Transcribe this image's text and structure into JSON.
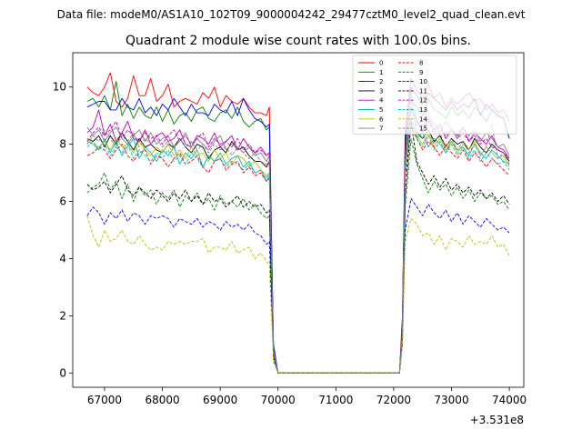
{
  "chart_data": {
    "type": "line",
    "suptitle": "Data file: modeM0/AS1A10_102T09_9000004242_29477cztM0_level2_quad_clean.evt",
    "title": "Quadrant 2 module wise count rates with 100.0s bins.",
    "xlabel": "",
    "ylabel": "",
    "x_offset_label": "+3.531e8",
    "xlim": [
      66450,
      74250
    ],
    "ylim": [
      -0.5,
      11.2
    ],
    "xticks": [
      67000,
      68000,
      69000,
      70000,
      71000,
      72000,
      73000,
      74000
    ],
    "xtick_labels": [
      "67000",
      "68000",
      "69000",
      "70000",
      "71000",
      "72000",
      "73000",
      "74000"
    ],
    "yticks": [
      0,
      2,
      4,
      6,
      8,
      10
    ],
    "ytick_labels": [
      "0",
      "2",
      "4",
      "6",
      "8",
      "10"
    ],
    "grid": false,
    "legend_location": "upper-right",
    "legend_columns": 4,
    "x": [
      66700,
      66800,
      66900,
      67000,
      67100,
      67200,
      67300,
      67400,
      67500,
      67600,
      67700,
      67800,
      67900,
      68000,
      68100,
      68200,
      68300,
      68400,
      68500,
      68600,
      68700,
      68800,
      68900,
      69000,
      69100,
      69200,
      69300,
      69400,
      69500,
      69600,
      69700,
      69800,
      69850,
      69920,
      70000,
      70500,
      71000,
      71500,
      72000,
      72100,
      72150,
      72200,
      72300,
      72400,
      72500,
      72600,
      72700,
      72800,
      72900,
      73000,
      73100,
      73200,
      73300,
      73400,
      73500,
      73600,
      73700,
      73800,
      73900,
      74000
    ],
    "series": [
      {
        "name": "0",
        "color": "#ff0000",
        "dash": "solid",
        "values": [
          10.0,
          9.8,
          9.7,
          10.0,
          10.5,
          9.5,
          9.3,
          9.6,
          10.4,
          9.7,
          9.7,
          10.3,
          9.5,
          9.7,
          10.1,
          9.3,
          9.5,
          9.6,
          9.5,
          9.4,
          9.8,
          9.6,
          10.0,
          9.3,
          9.7,
          9.5,
          9.4,
          9.6,
          9.3,
          9.1,
          9.1,
          9.0,
          9.3,
          1.0,
          0.0,
          0.0,
          0.0,
          0.0,
          0.0,
          0.0,
          2.0,
          8.5,
          10.3,
          9.9,
          9.6,
          10.1,
          9.6,
          9.8,
          9.3,
          9.6,
          9.4,
          9.6,
          9.8,
          9.5,
          9.6,
          9.2,
          9.4,
          9.1,
          9.2,
          8.8
        ]
      },
      {
        "name": "1",
        "color": "#008000",
        "dash": "solid",
        "values": [
          9.5,
          9.6,
          9.3,
          9.7,
          9.2,
          10.2,
          9.0,
          9.4,
          8.9,
          9.3,
          9.0,
          8.9,
          9.3,
          8.8,
          9.2,
          8.7,
          9.0,
          9.1,
          8.8,
          9.2,
          9.3,
          8.9,
          8.8,
          9.1,
          9.2,
          8.9,
          9.3,
          8.8,
          8.6,
          8.8,
          8.9,
          8.5,
          8.6,
          0.9,
          0.0,
          0.0,
          0.0,
          0.0,
          0.0,
          0.0,
          1.6,
          8.0,
          9.5,
          9.3,
          9.0,
          9.6,
          9.2,
          9.1,
          8.9,
          9.3,
          9.0,
          9.2,
          8.9,
          9.3,
          9.1,
          8.8,
          9.2,
          9.0,
          8.9,
          8.2
        ]
      },
      {
        "name": "2",
        "color": "#0000ff",
        "dash": "solid",
        "values": [
          9.3,
          9.4,
          9.5,
          9.5,
          9.2,
          9.2,
          9.6,
          9.3,
          9.2,
          9.6,
          9.1,
          9.3,
          9.0,
          9.4,
          9.2,
          9.6,
          9.3,
          9.0,
          9.4,
          9.1,
          9.1,
          9.0,
          9.4,
          9.2,
          9.1,
          9.5,
          9.0,
          9.6,
          9.2,
          8.9,
          8.8,
          8.6,
          8.7,
          1.0,
          0.0,
          0.0,
          0.0,
          0.0,
          0.0,
          0.0,
          1.8,
          8.2,
          10.0,
          9.7,
          9.4,
          9.8,
          9.6,
          9.4,
          9.2,
          9.5,
          9.2,
          9.4,
          9.3,
          9.6,
          9.0,
          9.4,
          9.2,
          9.0,
          8.9,
          8.2
        ]
      },
      {
        "name": "3",
        "color": "#000000",
        "dash": "solid",
        "values": [
          8.2,
          8.1,
          8.3,
          7.9,
          8.3,
          8.0,
          8.4,
          8.1,
          7.8,
          8.2,
          7.9,
          8.0,
          7.8,
          7.7,
          8.0,
          7.9,
          8.2,
          7.9,
          7.7,
          8.0,
          7.9,
          7.5,
          7.8,
          7.9,
          7.7,
          8.1,
          7.8,
          7.9,
          7.6,
          7.4,
          7.4,
          7.2,
          7.4,
          0.8,
          0.0,
          0.0,
          0.0,
          0.0,
          0.0,
          0.0,
          1.5,
          7.5,
          8.8,
          8.4,
          8.2,
          8.5,
          8.1,
          8.3,
          7.9,
          8.2,
          8.0,
          8.1,
          7.8,
          8.2,
          7.9,
          7.7,
          8.0,
          7.8,
          7.7,
          7.4
        ]
      },
      {
        "name": "4",
        "color": "#bf00bf",
        "dash": "solid",
        "values": [
          8.4,
          8.6,
          9.2,
          8.3,
          8.7,
          8.1,
          8.4,
          8.8,
          8.2,
          8.1,
          8.5,
          8.0,
          8.3,
          8.4,
          8.1,
          8.2,
          8.5,
          8.0,
          7.9,
          8.3,
          8.2,
          8.0,
          8.4,
          7.9,
          8.1,
          8.3,
          7.8,
          8.2,
          7.9,
          7.7,
          7.9,
          7.6,
          7.7,
          0.8,
          0.0,
          0.0,
          0.0,
          0.0,
          0.0,
          0.0,
          1.6,
          7.8,
          9.3,
          8.8,
          8.4,
          8.9,
          8.5,
          8.7,
          8.2,
          8.5,
          8.3,
          8.6,
          8.1,
          8.4,
          8.2,
          8.0,
          8.3,
          7.9,
          7.8,
          7.5
        ]
      },
      {
        "name": "5",
        "color": "#00bfbf",
        "dash": "solid",
        "values": [
          8.1,
          8.0,
          7.8,
          8.2,
          7.7,
          8.1,
          7.6,
          7.9,
          8.2,
          7.5,
          7.9,
          7.7,
          7.4,
          7.8,
          7.6,
          7.9,
          7.3,
          7.7,
          7.5,
          7.8,
          7.2,
          7.6,
          7.4,
          7.7,
          7.3,
          7.5,
          7.6,
          7.2,
          7.4,
          7.0,
          7.1,
          6.7,
          6.9,
          0.7,
          0.0,
          0.0,
          0.0,
          0.0,
          0.0,
          0.0,
          1.4,
          7.0,
          9.8,
          8.2,
          8.4,
          7.9,
          8.2,
          8.0,
          7.7,
          8.1,
          7.8,
          7.9,
          7.6,
          8.0,
          7.7,
          7.5,
          7.8,
          7.6,
          7.4,
          7.3
        ]
      },
      {
        "name": "6",
        "color": "#bfbf00",
        "dash": "solid",
        "values": [
          8.2,
          8.0,
          7.9,
          8.1,
          7.8,
          8.2,
          7.9,
          8.0,
          7.7,
          8.1,
          7.8,
          7.6,
          7.9,
          7.7,
          8.0,
          7.6,
          7.8,
          7.5,
          7.9,
          7.6,
          7.7,
          7.4,
          7.8,
          7.5,
          7.7,
          7.3,
          7.6,
          7.5,
          7.2,
          7.4,
          7.1,
          6.9,
          7.0,
          0.7,
          0.0,
          0.0,
          0.0,
          0.0,
          0.0,
          0.0,
          1.4,
          7.1,
          8.9,
          8.3,
          8.0,
          8.4,
          7.9,
          8.2,
          7.8,
          8.1,
          7.7,
          8.0,
          7.8,
          8.1,
          7.6,
          7.9,
          7.7,
          7.5,
          7.6,
          7.2
        ]
      },
      {
        "name": "7",
        "color": "#808080",
        "dash": "solid",
        "values": [
          8.6,
          8.3,
          8.5,
          8.1,
          8.4,
          8.6,
          8.2,
          8.0,
          8.3,
          8.5,
          8.1,
          8.4,
          8.0,
          8.2,
          8.3,
          7.9,
          8.1,
          8.4,
          7.9,
          8.2,
          8.0,
          7.8,
          8.1,
          8.3,
          7.8,
          8.0,
          7.9,
          7.7,
          7.9,
          7.6,
          7.7,
          7.4,
          7.6,
          0.8,
          0.0,
          0.0,
          0.0,
          0.0,
          0.0,
          0.0,
          1.5,
          7.6,
          9.6,
          8.8,
          8.6,
          9.0,
          8.7,
          8.4,
          8.8,
          8.5,
          8.2,
          8.6,
          8.3,
          8.5,
          8.1,
          8.4,
          8.2,
          7.9,
          8.0,
          7.6
        ]
      },
      {
        "name": "8",
        "color": "#ff0000",
        "dash": "dashed",
        "values": [
          7.6,
          7.7,
          7.9,
          7.8,
          7.5,
          7.8,
          8.0,
          7.6,
          7.4,
          7.7,
          7.8,
          7.3,
          7.6,
          7.5,
          7.2,
          7.5,
          7.7,
          7.3,
          7.4,
          7.6,
          7.2,
          7.0,
          7.4,
          7.5,
          7.1,
          7.3,
          7.4,
          7.0,
          7.2,
          6.9,
          7.0,
          6.7,
          6.8,
          0.7,
          0.0,
          0.0,
          0.0,
          0.0,
          0.0,
          0.0,
          1.3,
          6.8,
          8.6,
          8.2,
          7.8,
          8.1,
          7.9,
          7.6,
          8.0,
          7.7,
          7.5,
          7.8,
          7.4,
          7.7,
          7.5,
          7.2,
          7.5,
          7.3,
          7.1,
          6.9
        ]
      },
      {
        "name": "9",
        "color": "#008000",
        "dash": "dashed",
        "values": [
          6.3,
          6.5,
          6.6,
          7.0,
          6.4,
          6.7,
          6.1,
          6.6,
          6.0,
          6.5,
          6.2,
          6.4,
          5.9,
          6.3,
          6.1,
          6.4,
          5.8,
          6.2,
          6.0,
          6.3,
          5.9,
          6.1,
          5.7,
          6.2,
          5.9,
          6.0,
          5.8,
          6.1,
          5.7,
          5.9,
          5.6,
          5.4,
          5.5,
          0.6,
          0.0,
          0.0,
          0.0,
          0.0,
          0.0,
          0.0,
          1.1,
          5.8,
          8.2,
          7.3,
          6.8,
          6.3,
          6.7,
          6.4,
          6.6,
          6.2,
          6.5,
          6.1,
          6.4,
          6.0,
          6.3,
          6.1,
          6.2,
          5.9,
          6.0,
          5.7
        ]
      },
      {
        "name": "10",
        "color": "#0000ff",
        "dash": "dashed",
        "values": [
          5.5,
          5.8,
          5.6,
          5.2,
          5.6,
          5.4,
          5.7,
          5.3,
          5.6,
          5.5,
          5.2,
          5.5,
          5.4,
          5.5,
          5.4,
          5.1,
          5.4,
          5.3,
          5.2,
          5.4,
          5.1,
          5.3,
          5.2,
          5.0,
          5.3,
          5.1,
          5.2,
          5.0,
          5.2,
          4.9,
          4.8,
          4.5,
          4.6,
          0.5,
          0.0,
          0.0,
          0.0,
          0.0,
          0.0,
          0.0,
          1.0,
          5.0,
          6.1,
          5.8,
          5.5,
          5.9,
          5.6,
          5.4,
          5.7,
          5.3,
          5.6,
          5.2,
          5.5,
          5.3,
          5.1,
          5.4,
          5.2,
          5.0,
          5.1,
          4.9
        ]
      },
      {
        "name": "11",
        "color": "#000000",
        "dash": "dashed",
        "values": [
          6.6,
          6.4,
          6.5,
          6.7,
          6.3,
          6.6,
          6.9,
          6.4,
          6.2,
          6.5,
          6.3,
          6.1,
          6.4,
          6.2,
          6.0,
          6.3,
          6.1,
          6.4,
          6.0,
          6.2,
          5.9,
          6.3,
          6.0,
          6.1,
          5.8,
          6.0,
          6.2,
          5.8,
          6.0,
          5.8,
          5.9,
          5.6,
          5.7,
          0.6,
          0.0,
          0.0,
          0.0,
          0.0,
          0.0,
          0.0,
          1.2,
          6.2,
          8.8,
          7.4,
          7.0,
          6.6,
          6.9,
          6.5,
          6.8,
          6.4,
          6.6,
          6.3,
          6.5,
          6.2,
          6.4,
          6.1,
          6.3,
          6.0,
          6.2,
          5.9
        ]
      },
      {
        "name": "12",
        "color": "#bf00bf",
        "dash": "dashed",
        "values": [
          8.1,
          8.4,
          8.6,
          8.3,
          8.5,
          8.8,
          8.2,
          8.5,
          8.3,
          8.1,
          8.4,
          8.2,
          8.3,
          8.0,
          8.3,
          8.5,
          8.1,
          8.3,
          8.0,
          8.2,
          8.4,
          7.9,
          8.2,
          8.0,
          8.1,
          7.9,
          8.2,
          7.8,
          8.0,
          7.7,
          7.8,
          7.6,
          7.7,
          0.8,
          0.0,
          0.0,
          0.0,
          0.0,
          0.0,
          0.0,
          1.5,
          7.6,
          9.2,
          8.9,
          8.5,
          8.8,
          8.4,
          8.6,
          8.3,
          8.5,
          8.2,
          8.4,
          8.1,
          8.3,
          8.0,
          8.2,
          7.9,
          7.8,
          7.7,
          7.5
        ]
      },
      {
        "name": "13",
        "color": "#00bfbf",
        "dash": "dashed",
        "values": [
          7.9,
          8.1,
          7.8,
          8.0,
          7.6,
          7.9,
          7.7,
          8.0,
          7.5,
          7.8,
          7.6,
          7.4,
          7.7,
          7.5,
          7.8,
          7.4,
          7.6,
          7.3,
          7.7,
          7.5,
          7.2,
          7.6,
          7.4,
          7.5,
          7.2,
          7.4,
          7.3,
          7.1,
          7.3,
          7.0,
          7.1,
          6.8,
          7.0,
          0.7,
          0.0,
          0.0,
          0.0,
          0.0,
          0.0,
          0.0,
          1.3,
          7.0,
          8.9,
          8.2,
          7.9,
          8.3,
          7.8,
          8.1,
          7.7,
          8.0,
          7.6,
          7.9,
          7.5,
          7.8,
          7.4,
          7.7,
          7.5,
          7.3,
          7.4,
          7.1
        ]
      },
      {
        "name": "14",
        "color": "#bfbf00",
        "dash": "dashed",
        "values": [
          5.5,
          4.8,
          4.4,
          5.0,
          4.6,
          4.7,
          5.0,
          4.6,
          4.5,
          4.8,
          4.5,
          4.3,
          4.4,
          4.3,
          4.6,
          4.5,
          4.6,
          4.5,
          4.6,
          4.6,
          4.7,
          4.2,
          4.4,
          4.4,
          4.3,
          4.6,
          4.2,
          4.3,
          4.4,
          4.0,
          4.2,
          3.9,
          3.8,
          0.4,
          0.0,
          0.0,
          0.0,
          0.0,
          0.0,
          0.0,
          0.9,
          4.6,
          5.4,
          5.2,
          4.8,
          4.9,
          4.5,
          4.8,
          4.3,
          4.7,
          4.6,
          4.4,
          4.8,
          4.5,
          4.6,
          4.5,
          4.8,
          4.4,
          4.5,
          4.1
        ]
      },
      {
        "name": "15",
        "color": "#808080",
        "dash": "dashed",
        "values": [
          8.0,
          8.3,
          8.1,
          8.5,
          8.2,
          7.9,
          8.3,
          8.1,
          8.4,
          7.9,
          8.2,
          8.0,
          8.2,
          7.9,
          8.1,
          7.8,
          8.2,
          7.9,
          8.1,
          7.8,
          8.0,
          7.7,
          8.0,
          7.8,
          7.9,
          7.6,
          7.9,
          7.7,
          7.5,
          7.7,
          7.4,
          7.3,
          7.4,
          0.8,
          0.0,
          0.0,
          0.0,
          0.0,
          0.0,
          0.0,
          1.4,
          7.3,
          9.1,
          8.6,
          8.2,
          8.5,
          8.0,
          8.4,
          7.9,
          8.2,
          7.8,
          8.1,
          7.7,
          8.0,
          7.6,
          7.9,
          8.7,
          7.5,
          7.7,
          7.3
        ]
      }
    ]
  }
}
